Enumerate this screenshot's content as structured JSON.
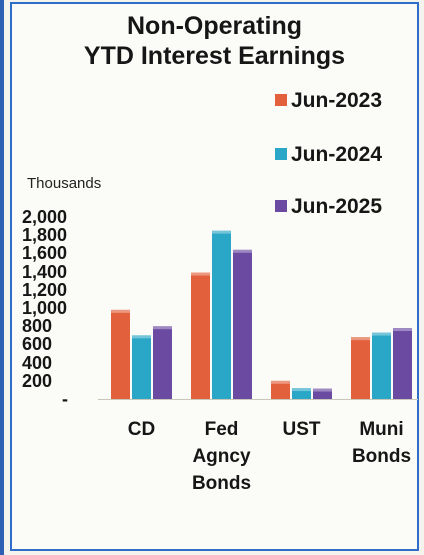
{
  "chart_data": {
    "type": "bar",
    "title": [
      "Non-Operating",
      "YTD Interest Earnings"
    ],
    "units_label": "Thousands",
    "categories": [
      "CD",
      "Fed\nAgncy\nBonds",
      "UST",
      "Muni\nBonds"
    ],
    "series": [
      {
        "name": "Jun-2023",
        "color": "#e2613c",
        "values": [
          980,
          1390,
          200,
          680
        ]
      },
      {
        "name": "Jun-2024",
        "color": "#2aa7c6",
        "values": [
          700,
          1850,
          120,
          730
        ]
      },
      {
        "name": "Jun-2025",
        "color": "#6b4aa2",
        "values": [
          800,
          1640,
          115,
          780
        ]
      }
    ],
    "y_tick_labels": [
      "2,000",
      "1,800",
      "1,600",
      "1,400",
      "1,200",
      "1,000",
      "800",
      "600",
      "400",
      "200",
      "-"
    ],
    "ylim": [
      0,
      2000
    ],
    "legend_position": "top-right",
    "grid": false
  }
}
